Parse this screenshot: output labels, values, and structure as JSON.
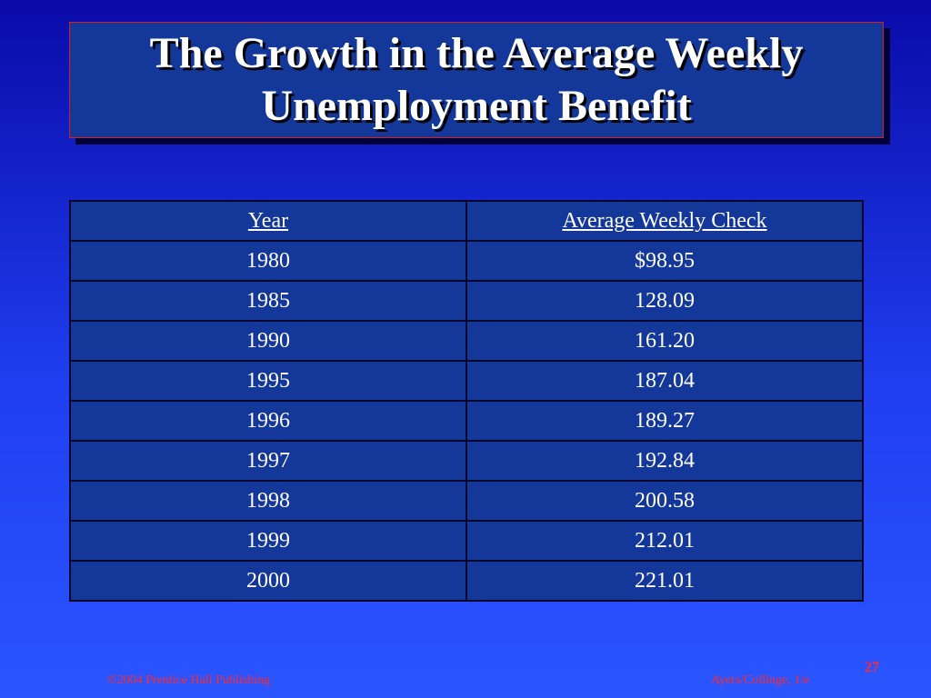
{
  "slide": {
    "title_line1": "The Growth in the Average Weekly",
    "title_line2": "Unemployment Benefit"
  },
  "table": {
    "headers": [
      "Year",
      "Average Weekly Check"
    ],
    "rows": [
      [
        "1980",
        "$98.95"
      ],
      [
        "1985",
        "128.09"
      ],
      [
        "1990",
        "161.20"
      ],
      [
        "1995",
        "187.04"
      ],
      [
        "1996",
        "189.27"
      ],
      [
        "1997",
        "192.84"
      ],
      [
        "1998",
        "200.58"
      ],
      [
        "1999",
        "212.01"
      ],
      [
        "2000",
        "221.01"
      ]
    ]
  },
  "footer": {
    "copyright": "©2004 Prentice Hall Publishing",
    "authors": "Ayers/Collinge, 1/e",
    "page_number": "27"
  },
  "colors": {
    "background_top": "#0a0aa8",
    "background_bottom": "#2a55ff",
    "panel": "#14389a",
    "title_border": "#d42020",
    "footer_text": "#ff2a2a",
    "text": "#ffffff"
  }
}
